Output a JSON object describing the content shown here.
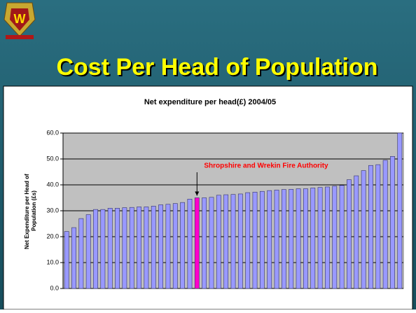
{
  "header": {
    "title": "Cost Per Head of Population"
  },
  "chart_data": {
    "type": "bar",
    "title": "Net expenditure per head(£) 2004/05",
    "y_label": "Net Expenditure per Head of Population (£s)",
    "annotation": "Shropshire and Wrekin Fire Authority",
    "values": [
      22,
      23.5,
      27,
      28.5,
      30.5,
      30.5,
      31,
      31,
      31.2,
      31.3,
      31.5,
      31.5,
      31.8,
      32.3,
      32.5,
      32.8,
      33.2,
      34.5,
      35,
      35,
      35.2,
      36,
      36.2,
      36.3,
      36.5,
      37,
      37.2,
      37.5,
      37.8,
      38,
      38.2,
      38.3,
      38.5,
      38.5,
      38.8,
      39,
      39.2,
      39.5,
      39.8,
      42,
      43.5,
      45.5,
      47.5,
      47.8,
      49.5,
      51,
      60
    ],
    "colors": [
      "#9999ff",
      "#9999ff",
      "#9999ff",
      "#9999ff",
      "#9999ff",
      "#9999ff",
      "#9999ff",
      "#9999ff",
      "#9999ff",
      "#9999ff",
      "#9999ff",
      "#9999ff",
      "#9999ff",
      "#9999ff",
      "#9999ff",
      "#9999ff",
      "#9999ff",
      "#9999ff",
      "#ff00cc",
      "#9999ff",
      "#9999ff",
      "#9999ff",
      "#9999ff",
      "#9999ff",
      "#9999ff",
      "#9999ff",
      "#9999ff",
      "#9999ff",
      "#9999ff",
      "#9999ff",
      "#9999ff",
      "#9999ff",
      "#9999ff",
      "#9999ff",
      "#9999ff",
      "#9999ff",
      "#9999ff",
      "#9999ff",
      "#9999ff",
      "#9999ff",
      "#9999ff",
      "#9999ff",
      "#9999ff",
      "#9999ff",
      "#9999ff",
      "#9999ff",
      "#9999ff"
    ],
    "ylim": [
      0,
      60
    ],
    "yticks": [
      {
        "value": 0,
        "label": "0.0"
      },
      {
        "value": 10,
        "label": "10.0"
      },
      {
        "value": 20,
        "label": "20.0"
      },
      {
        "value": 30,
        "label": "30.0"
      },
      {
        "value": 40,
        "label": "40.0"
      },
      {
        "value": 50,
        "label": "50.0"
      },
      {
        "value": 60,
        "label": "60.0"
      }
    ],
    "grid": true
  }
}
